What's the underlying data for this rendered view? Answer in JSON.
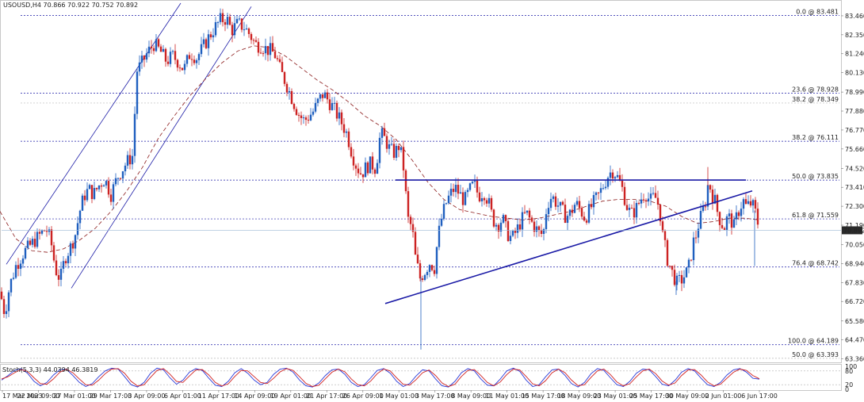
{
  "chart_data": {
    "type": "candlestick",
    "symbol_title": "USOUSD,H4  70.866 70.922 70.752 70.892",
    "price_axis": {
      "ticks": [
        "83.460",
        "82.350",
        "81.240",
        "80.130",
        "78.990",
        "77.880",
        "76.770",
        "75.660",
        "74.520",
        "73.410",
        "72.300",
        "71.190",
        "70.050",
        "68.940",
        "67.830",
        "66.720",
        "65.580",
        "64.470",
        "63.360"
      ],
      "range": [
        63.2,
        84.2
      ]
    },
    "current_price": "70.892",
    "x_axis_labels": [
      "17 Mar 2023",
      "22 Mar 09:00",
      "27 Mar 01:00",
      "29 Mar 17:00",
      "3 Apr 09:00",
      "6 Apr 01:00",
      "11 Apr 17:00",
      "14 Apr 09:00",
      "19 Apr 01:00",
      "21 Apr 17:00",
      "26 Apr 09:00",
      "1 May 01:00",
      "3 May 17:00",
      "8 May 09:00",
      "11 May 01:00",
      "15 May 17:00",
      "18 May 09:00",
      "23 May 01:00",
      "25 May 17:00",
      "30 May 09:00",
      "2 Jun 01:00",
      "6 Jun 17:00"
    ],
    "fibonacci": [
      {
        "label": "0.0 @ 83.481",
        "price": 83.481,
        "muted": false
      },
      {
        "label": "23.6 @ 78.928",
        "price": 78.928,
        "muted": false
      },
      {
        "label": "38.2 @ 78.349",
        "price": 78.349,
        "muted": true
      },
      {
        "label": "38.2 @ 76.111",
        "price": 76.111,
        "muted": false
      },
      {
        "label": "50.0 @ 73.835",
        "price": 73.835,
        "muted": false
      },
      {
        "label": "61.8 @ 71.559",
        "price": 71.559,
        "muted": false
      },
      {
        "label": "76.4 @ 68.742",
        "price": 68.742,
        "muted": false
      },
      {
        "label": "100.0 @ 64.189",
        "price": 64.189,
        "muted": false
      },
      {
        "label": "50.0 @ 63.393",
        "price": 63.393,
        "muted": true
      }
    ],
    "close_path": [
      [
        0,
        67.3
      ],
      [
        6,
        66.0
      ],
      [
        12,
        67.6
      ],
      [
        20,
        68.8
      ],
      [
        30,
        69.6
      ],
      [
        40,
        70.1
      ],
      [
        50,
        70.6
      ],
      [
        58,
        71.0
      ],
      [
        64,
        70.3
      ],
      [
        70,
        68.6
      ],
      [
        76,
        68.0
      ],
      [
        82,
        69.3
      ],
      [
        90,
        70.0
      ],
      [
        96,
        70.8
      ],
      [
        100,
        71.9
      ],
      [
        106,
        72.9
      ],
      [
        112,
        73.3
      ],
      [
        118,
        73.0
      ],
      [
        126,
        73.6
      ],
      [
        132,
        73.9
      ],
      [
        140,
        73.0
      ],
      [
        148,
        74.0
      ],
      [
        156,
        74.6
      ],
      [
        162,
        75.0
      ],
      [
        168,
        75.3
      ],
      [
        172,
        80.2
      ],
      [
        178,
        80.6
      ],
      [
        186,
        81.3
      ],
      [
        194,
        81.8
      ],
      [
        202,
        81.4
      ],
      [
        210,
        80.8
      ],
      [
        218,
        81.1
      ],
      [
        226,
        80.7
      ],
      [
        232,
        80.3
      ],
      [
        240,
        81.3
      ],
      [
        248,
        81.0
      ],
      [
        256,
        81.6
      ],
      [
        262,
        82.1
      ],
      [
        270,
        82.7
      ],
      [
        278,
        83.2
      ],
      [
        286,
        83.3
      ],
      [
        292,
        82.6
      ],
      [
        300,
        83.0
      ],
      [
        308,
        82.8
      ],
      [
        316,
        82.3
      ],
      [
        322,
        81.8
      ],
      [
        330,
        81.7
      ],
      [
        336,
        81.5
      ],
      [
        342,
        81.4
      ],
      [
        348,
        81.1
      ],
      [
        354,
        80.2
      ],
      [
        360,
        79.6
      ],
      [
        366,
        78.9
      ],
      [
        372,
        78.2
      ],
      [
        378,
        77.6
      ],
      [
        384,
        77.3
      ],
      [
        390,
        77.6
      ],
      [
        396,
        77.9
      ],
      [
        402,
        78.5
      ],
      [
        408,
        78.9
      ],
      [
        414,
        78.5
      ],
      [
        420,
        78.1
      ],
      [
        426,
        77.6
      ],
      [
        432,
        77.1
      ],
      [
        438,
        76.5
      ],
      [
        444,
        75.4
      ],
      [
        450,
        74.6
      ],
      [
        456,
        74.2
      ],
      [
        462,
        74.6
      ],
      [
        468,
        74.8
      ],
      [
        474,
        74.5
      ],
      [
        480,
        76.6
      ],
      [
        486,
        76.2
      ],
      [
        492,
        75.6
      ],
      [
        498,
        75.4
      ],
      [
        504,
        75.9
      ],
      [
        510,
        74.3
      ],
      [
        514,
        71.6
      ],
      [
        520,
        71.0
      ],
      [
        524,
        69.3
      ],
      [
        530,
        68.1
      ],
      [
        536,
        68.5
      ],
      [
        542,
        69.0
      ],
      [
        548,
        68.7
      ],
      [
        552,
        70.3
      ],
      [
        556,
        71.4
      ],
      [
        562,
        72.4
      ],
      [
        568,
        73.0
      ],
      [
        574,
        73.4
      ],
      [
        580,
        73.0
      ],
      [
        586,
        72.6
      ],
      [
        592,
        73.2
      ],
      [
        598,
        73.6
      ],
      [
        604,
        72.9
      ],
      [
        610,
        73.2
      ],
      [
        616,
        72.6
      ],
      [
        622,
        71.5
      ],
      [
        628,
        71.2
      ],
      [
        634,
        71.6
      ],
      [
        640,
        70.7
      ],
      [
        646,
        70.4
      ],
      [
        652,
        70.9
      ],
      [
        658,
        71.5
      ],
      [
        664,
        71.9
      ],
      [
        670,
        71.4
      ],
      [
        676,
        71.0
      ],
      [
        682,
        70.6
      ],
      [
        686,
        70.9
      ],
      [
        690,
        72.4
      ],
      [
        696,
        72.9
      ],
      [
        702,
        72.5
      ],
      [
        708,
        72.1
      ],
      [
        714,
        71.7
      ],
      [
        720,
        71.9
      ],
      [
        726,
        72.5
      ],
      [
        732,
        72.1
      ],
      [
        738,
        71.6
      ],
      [
        744,
        72.1
      ],
      [
        750,
        72.6
      ],
      [
        756,
        73.0
      ],
      [
        762,
        73.6
      ],
      [
        768,
        74.2
      ],
      [
        774,
        74.4
      ],
      [
        780,
        73.9
      ],
      [
        786,
        73.2
      ],
      [
        790,
        72.4
      ],
      [
        796,
        71.8
      ],
      [
        802,
        72.1
      ],
      [
        808,
        72.7
      ],
      [
        814,
        73.1
      ],
      [
        820,
        72.6
      ],
      [
        826,
        72.9
      ],
      [
        832,
        72.2
      ],
      [
        836,
        70.6
      ],
      [
        842,
        69.2
      ],
      [
        848,
        68.4
      ],
      [
        854,
        67.8
      ],
      [
        860,
        68.0
      ],
      [
        866,
        68.4
      ],
      [
        870,
        68.9
      ],
      [
        874,
        70.1
      ],
      [
        878,
        70.6
      ],
      [
        882,
        71.4
      ],
      [
        886,
        71.9
      ],
      [
        890,
        72.6
      ],
      [
        894,
        73.8
      ],
      [
        898,
        73.0
      ],
      [
        902,
        72.6
      ],
      [
        906,
        71.8
      ],
      [
        910,
        71.3
      ],
      [
        914,
        71.1
      ],
      [
        918,
        71.7
      ],
      [
        922,
        71.5
      ],
      [
        926,
        71.1
      ],
      [
        930,
        71.8
      ],
      [
        934,
        72.3
      ],
      [
        938,
        72.6
      ],
      [
        942,
        72.2
      ],
      [
        946,
        72.5
      ],
      [
        950,
        72.3
      ],
      [
        954,
        71.8
      ],
      [
        958,
        70.89
      ]
    ],
    "wicks": [
      [
        531,
        63.9
      ],
      [
        893,
        74.6
      ],
      [
        952,
        68.8
      ],
      [
        853,
        67.1
      ]
    ],
    "moving_average": [
      [
        0,
        72.0
      ],
      [
        20,
        70.4
      ],
      [
        40,
        69.7
      ],
      [
        60,
        69.6
      ],
      [
        80,
        69.8
      ],
      [
        100,
        70.3
      ],
      [
        120,
        71.0
      ],
      [
        140,
        72.0
      ],
      [
        160,
        73.2
      ],
      [
        180,
        74.6
      ],
      [
        200,
        76.3
      ],
      [
        220,
        77.6
      ],
      [
        240,
        78.8
      ],
      [
        260,
        79.8
      ],
      [
        280,
        80.7
      ],
      [
        300,
        81.4
      ],
      [
        320,
        81.7
      ],
      [
        340,
        81.6
      ],
      [
        360,
        81.1
      ],
      [
        380,
        80.4
      ],
      [
        400,
        79.7
      ],
      [
        420,
        79.1
      ],
      [
        440,
        78.4
      ],
      [
        460,
        77.6
      ],
      [
        480,
        77.0
      ],
      [
        500,
        76.2
      ],
      [
        520,
        75.0
      ],
      [
        540,
        73.7
      ],
      [
        560,
        72.7
      ],
      [
        580,
        72.1
      ],
      [
        600,
        71.9
      ],
      [
        620,
        71.7
      ],
      [
        640,
        71.6
      ],
      [
        660,
        71.5
      ],
      [
        680,
        71.6
      ],
      [
        700,
        71.8
      ],
      [
        720,
        72.0
      ],
      [
        740,
        72.3
      ],
      [
        760,
        72.6
      ],
      [
        780,
        72.7
      ],
      [
        800,
        72.7
      ],
      [
        820,
        72.6
      ],
      [
        840,
        72.3
      ],
      [
        860,
        71.7
      ],
      [
        880,
        71.3
      ],
      [
        900,
        71.4
      ],
      [
        920,
        71.6
      ],
      [
        940,
        71.6
      ],
      [
        958,
        71.5
      ]
    ],
    "resistance_line": {
      "from": [
        499,
        73.835
      ],
      "to": [
        941,
        73.835
      ]
    },
    "rising_trendline": {
      "from": [
        486,
        66.6
      ],
      "to": [
        949,
        73.2
      ]
    },
    "channel_upper": [
      [
        8,
        68.9
      ],
      [
        228,
        84.2
      ]
    ],
    "channel_lower": [
      [
        90,
        67.5
      ],
      [
        317,
        84.0
      ]
    ],
    "stochastic": {
      "label": "Stoch(5,3,3) 44.0394 46.3819",
      "ticks": [
        "100",
        "80",
        "20",
        "0"
      ],
      "levels": [
        80,
        20
      ],
      "values_k": [
        40,
        60,
        82,
        90,
        70,
        35,
        15,
        30,
        62,
        85,
        88,
        60,
        30,
        12,
        25,
        55,
        80,
        92,
        88,
        55,
        20,
        10,
        30,
        70,
        92,
        85,
        50,
        22,
        40,
        75,
        90,
        82,
        48,
        18,
        12,
        35,
        72,
        90,
        70,
        40,
        20,
        30,
        65,
        88,
        92,
        75,
        40,
        15,
        10,
        28,
        60,
        85,
        88,
        65,
        30,
        12,
        20,
        50,
        82,
        90,
        70,
        35,
        12,
        25,
        58,
        85,
        80,
        45,
        15,
        10,
        35,
        72,
        90,
        80,
        45,
        18,
        15,
        45,
        80,
        92,
        78,
        40,
        12,
        20,
        55,
        85,
        88,
        60,
        25,
        10,
        30,
        68,
        90,
        82,
        50,
        20,
        12,
        35,
        70,
        88,
        85,
        55,
        22,
        15,
        40,
        75,
        90,
        80,
        48,
        20,
        12,
        30,
        62,
        85,
        90,
        75,
        48,
        44
      ],
      "values_d": [
        45,
        55,
        72,
        86,
        78,
        50,
        25,
        22,
        45,
        74,
        88,
        72,
        45,
        20,
        18,
        40,
        68,
        88,
        90,
        70,
        35,
        14,
        20,
        52,
        82,
        90,
        66,
        35,
        30,
        58,
        84,
        86,
        62,
        30,
        14,
        24,
        56,
        82,
        80,
        55,
        30,
        25,
        48,
        76,
        90,
        82,
        55,
        26,
        12,
        18,
        46,
        74,
        88,
        76,
        45,
        20,
        15,
        36,
        68,
        88,
        80,
        50,
        22,
        18,
        42,
        72,
        84,
        60,
        28,
        12,
        22,
        56,
        82,
        86,
        60,
        30,
        15,
        32,
        64,
        88,
        84,
        56,
        24,
        15,
        38,
        72,
        88,
        72,
        40,
        16,
        20,
        52,
        80,
        88,
        64,
        32,
        15,
        24,
        54,
        80,
        88,
        68,
        36,
        18,
        28,
        60,
        84,
        86,
        62,
        32,
        15,
        22,
        48,
        74,
        88,
        82,
        60,
        46
      ]
    },
    "colors": {
      "bull_candle": "#1f5fbf",
      "bear_candle": "#cc2222",
      "fib_line": "#1a1aa6",
      "trendline": "#1a1aa6",
      "moving_average": "#8b1a1a",
      "current_price_bg": "#2a2a2a",
      "stoch_main": "#2a3ad8",
      "stoch_signal": "#d02020"
    }
  }
}
